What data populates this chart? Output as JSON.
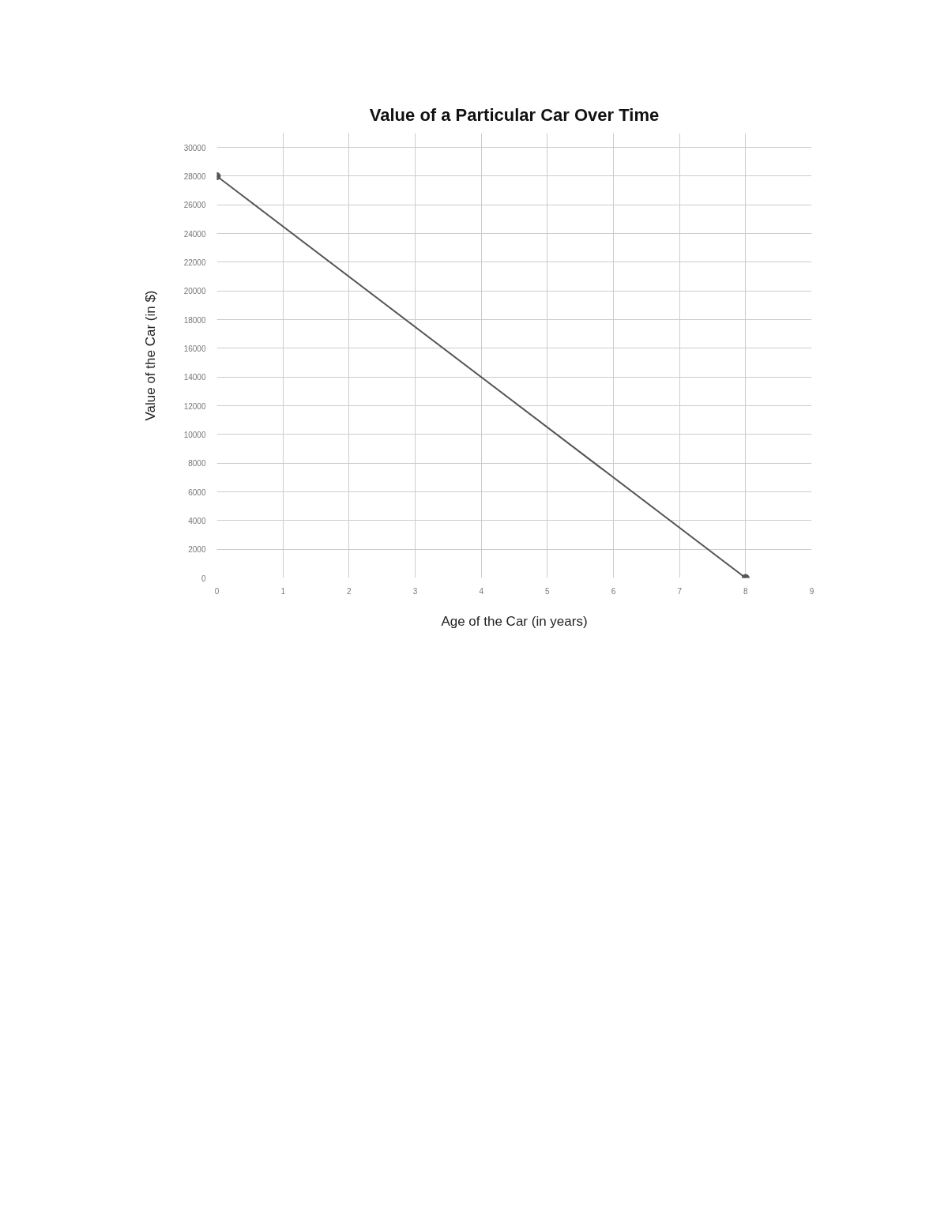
{
  "chart_data": {
    "type": "line",
    "title": "Value of a Particular Car Over Time",
    "xlabel": "Age of the Car (in years)",
    "ylabel": "Value of the Car (in $)",
    "x": [
      0,
      8
    ],
    "series": [
      {
        "color": "#555555",
        "values": [
          28000,
          0
        ]
      }
    ],
    "xlim": [
      0,
      9
    ],
    "ylim": [
      0,
      31000
    ],
    "xticks": [
      0,
      1,
      2,
      3,
      4,
      5,
      6,
      7,
      8,
      9
    ],
    "yticks": [
      0,
      2000,
      4000,
      6000,
      8000,
      10000,
      12000,
      14000,
      16000,
      18000,
      20000,
      22000,
      24000,
      26000,
      28000,
      30000
    ],
    "grid": true,
    "marker": "circle",
    "line_style": "solid"
  }
}
